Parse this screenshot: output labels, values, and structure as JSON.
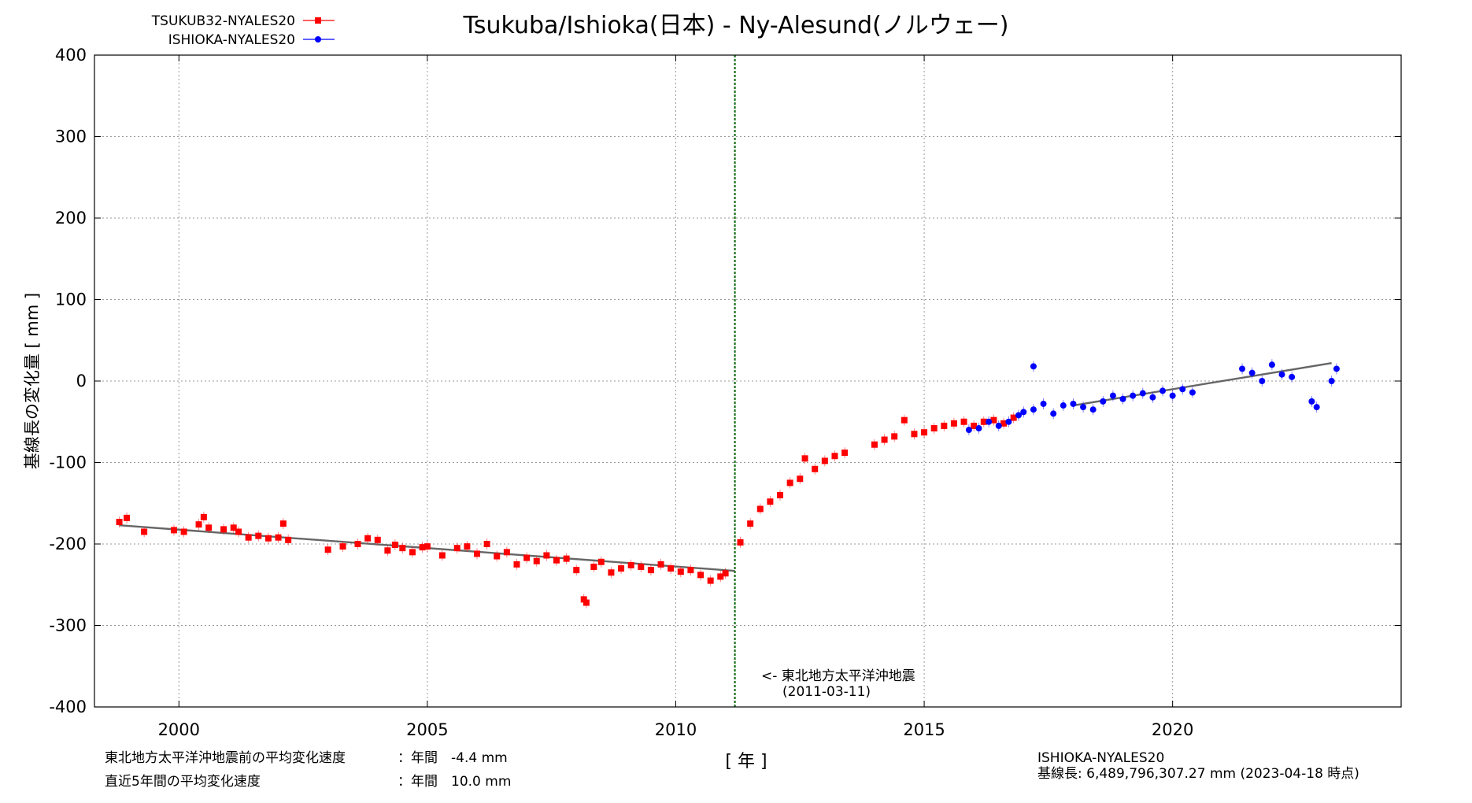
{
  "chart_data": {
    "type": "scatter",
    "title": "Tsukuba/Ishioka(日本) - Ny-Alesund(ノルウェー)",
    "xlabel": "[ 年 ]",
    "ylabel": "基線長の変化量 [ mm ]",
    "xlim": [
      1998.3,
      2024.6
    ],
    "ylim": [
      -400,
      400
    ],
    "xticks": [
      2000,
      2005,
      2010,
      2015,
      2020
    ],
    "yticks": [
      400,
      300,
      200,
      100,
      0,
      -100,
      -200,
      -300,
      -400
    ],
    "xtick_labels": [
      "2000",
      "2005",
      "2010",
      "2015",
      "2020"
    ],
    "ytick_labels": [
      "400",
      "300",
      "200",
      "100",
      "0",
      "-100",
      "-200",
      "-300",
      "-400"
    ],
    "grid": true,
    "legend_position": "top-left",
    "event": {
      "x": 2011.19,
      "label": "<- 東北地方太平洋沖地震",
      "date": "(2011-03-11)"
    },
    "series": [
      {
        "name": "TSUKUB32-NYALES20",
        "color": "#ff0000",
        "marker": "square",
        "points": [
          [
            1998.8,
            -173
          ],
          [
            1998.95,
            -168
          ],
          [
            1999.3,
            -185
          ],
          [
            1999.9,
            -183
          ],
          [
            2000.1,
            -185
          ],
          [
            2000.4,
            -176
          ],
          [
            2000.5,
            -167
          ],
          [
            2000.6,
            -180
          ],
          [
            2000.9,
            -182
          ],
          [
            2001.1,
            -180
          ],
          [
            2001.2,
            -185
          ],
          [
            2001.4,
            -192
          ],
          [
            2001.6,
            -190
          ],
          [
            2001.8,
            -193
          ],
          [
            2002.0,
            -192
          ],
          [
            2002.1,
            -175
          ],
          [
            2002.2,
            -195
          ],
          [
            2003.0,
            -207
          ],
          [
            2003.3,
            -203
          ],
          [
            2003.6,
            -200
          ],
          [
            2003.8,
            -193
          ],
          [
            2004.0,
            -195
          ],
          [
            2004.2,
            -208
          ],
          [
            2004.35,
            -201
          ],
          [
            2004.5,
            -205
          ],
          [
            2004.7,
            -210
          ],
          [
            2004.9,
            -204
          ],
          [
            2005.0,
            -203
          ],
          [
            2005.3,
            -214
          ],
          [
            2005.6,
            -205
          ],
          [
            2005.8,
            -203
          ],
          [
            2006.0,
            -212
          ],
          [
            2006.2,
            -200
          ],
          [
            2006.4,
            -215
          ],
          [
            2006.6,
            -210
          ],
          [
            2006.8,
            -225
          ],
          [
            2007.0,
            -217
          ],
          [
            2007.2,
            -221
          ],
          [
            2007.4,
            -214
          ],
          [
            2007.6,
            -220
          ],
          [
            2007.8,
            -218
          ],
          [
            2008.0,
            -232
          ],
          [
            2008.15,
            -268
          ],
          [
            2008.2,
            -272
          ],
          [
            2008.35,
            -228
          ],
          [
            2008.5,
            -222
          ],
          [
            2008.7,
            -235
          ],
          [
            2008.9,
            -230
          ],
          [
            2009.1,
            -226
          ],
          [
            2009.3,
            -228
          ],
          [
            2009.5,
            -232
          ],
          [
            2009.7,
            -225
          ],
          [
            2009.9,
            -230
          ],
          [
            2010.1,
            -234
          ],
          [
            2010.3,
            -232
          ],
          [
            2010.5,
            -238
          ],
          [
            2010.7,
            -245
          ],
          [
            2010.9,
            -240
          ],
          [
            2011.0,
            -236
          ],
          [
            2011.3,
            -198
          ],
          [
            2011.5,
            -175
          ],
          [
            2011.7,
            -157
          ],
          [
            2011.9,
            -148
          ],
          [
            2012.1,
            -140
          ],
          [
            2012.3,
            -125
          ],
          [
            2012.5,
            -120
          ],
          [
            2012.6,
            -95
          ],
          [
            2012.8,
            -108
          ],
          [
            2013.0,
            -98
          ],
          [
            2013.2,
            -92
          ],
          [
            2013.4,
            -88
          ],
          [
            2014.0,
            -78
          ],
          [
            2014.2,
            -72
          ],
          [
            2014.4,
            -68
          ],
          [
            2014.6,
            -48
          ],
          [
            2014.8,
            -65
          ],
          [
            2015.0,
            -63
          ],
          [
            2015.2,
            -58
          ],
          [
            2015.4,
            -55
          ],
          [
            2015.6,
            -52
          ],
          [
            2015.8,
            -50
          ],
          [
            2016.0,
            -55
          ],
          [
            2016.2,
            -50
          ],
          [
            2016.4,
            -48
          ],
          [
            2016.6,
            -52
          ],
          [
            2016.8,
            -45
          ]
        ]
      },
      {
        "name": "ISHIOKA-NYALES20",
        "color": "#0000ff",
        "marker": "circle",
        "points": [
          [
            2015.9,
            -60
          ],
          [
            2016.1,
            -58
          ],
          [
            2016.3,
            -50
          ],
          [
            2016.5,
            -55
          ],
          [
            2016.7,
            -50
          ],
          [
            2016.9,
            -42
          ],
          [
            2017.0,
            -38
          ],
          [
            2017.2,
            -35
          ],
          [
            2017.2,
            18
          ],
          [
            2017.4,
            -28
          ],
          [
            2017.6,
            -40
          ],
          [
            2017.8,
            -30
          ],
          [
            2018.0,
            -28
          ],
          [
            2018.2,
            -32
          ],
          [
            2018.4,
            -35
          ],
          [
            2018.6,
            -25
          ],
          [
            2018.8,
            -18
          ],
          [
            2019.0,
            -22
          ],
          [
            2019.2,
            -18
          ],
          [
            2019.4,
            -15
          ],
          [
            2019.6,
            -20
          ],
          [
            2019.8,
            -12
          ],
          [
            2020.0,
            -18
          ],
          [
            2020.2,
            -10
          ],
          [
            2020.4,
            -14
          ],
          [
            2021.4,
            15
          ],
          [
            2021.6,
            10
          ],
          [
            2021.8,
            0
          ],
          [
            2022.0,
            20
          ],
          [
            2022.2,
            8
          ],
          [
            2022.4,
            5
          ],
          [
            2022.8,
            -25
          ],
          [
            2022.9,
            -32
          ],
          [
            2023.2,
            0
          ],
          [
            2023.3,
            15
          ]
        ]
      }
    ],
    "trend_lines": [
      {
        "x": [
          1998.8,
          2011.19
        ],
        "y": [
          -177,
          -233
        ]
      },
      {
        "x": [
          2018.0,
          2023.2
        ],
        "y": [
          -30,
          22
        ]
      }
    ]
  },
  "footer": {
    "left_line1_label": "東北地方太平洋沖地震前の平均変化速度",
    "left_line1_value": "：年間　-4.4 mm",
    "left_line2_label": "直近5年間の平均変化速度",
    "left_line2_value": "：年間　10.0 mm",
    "right_line1": "ISHIOKA-NYALES20",
    "right_line2": "基線長: 6,489,796,307.27 mm (2023-04-18 時点)"
  }
}
